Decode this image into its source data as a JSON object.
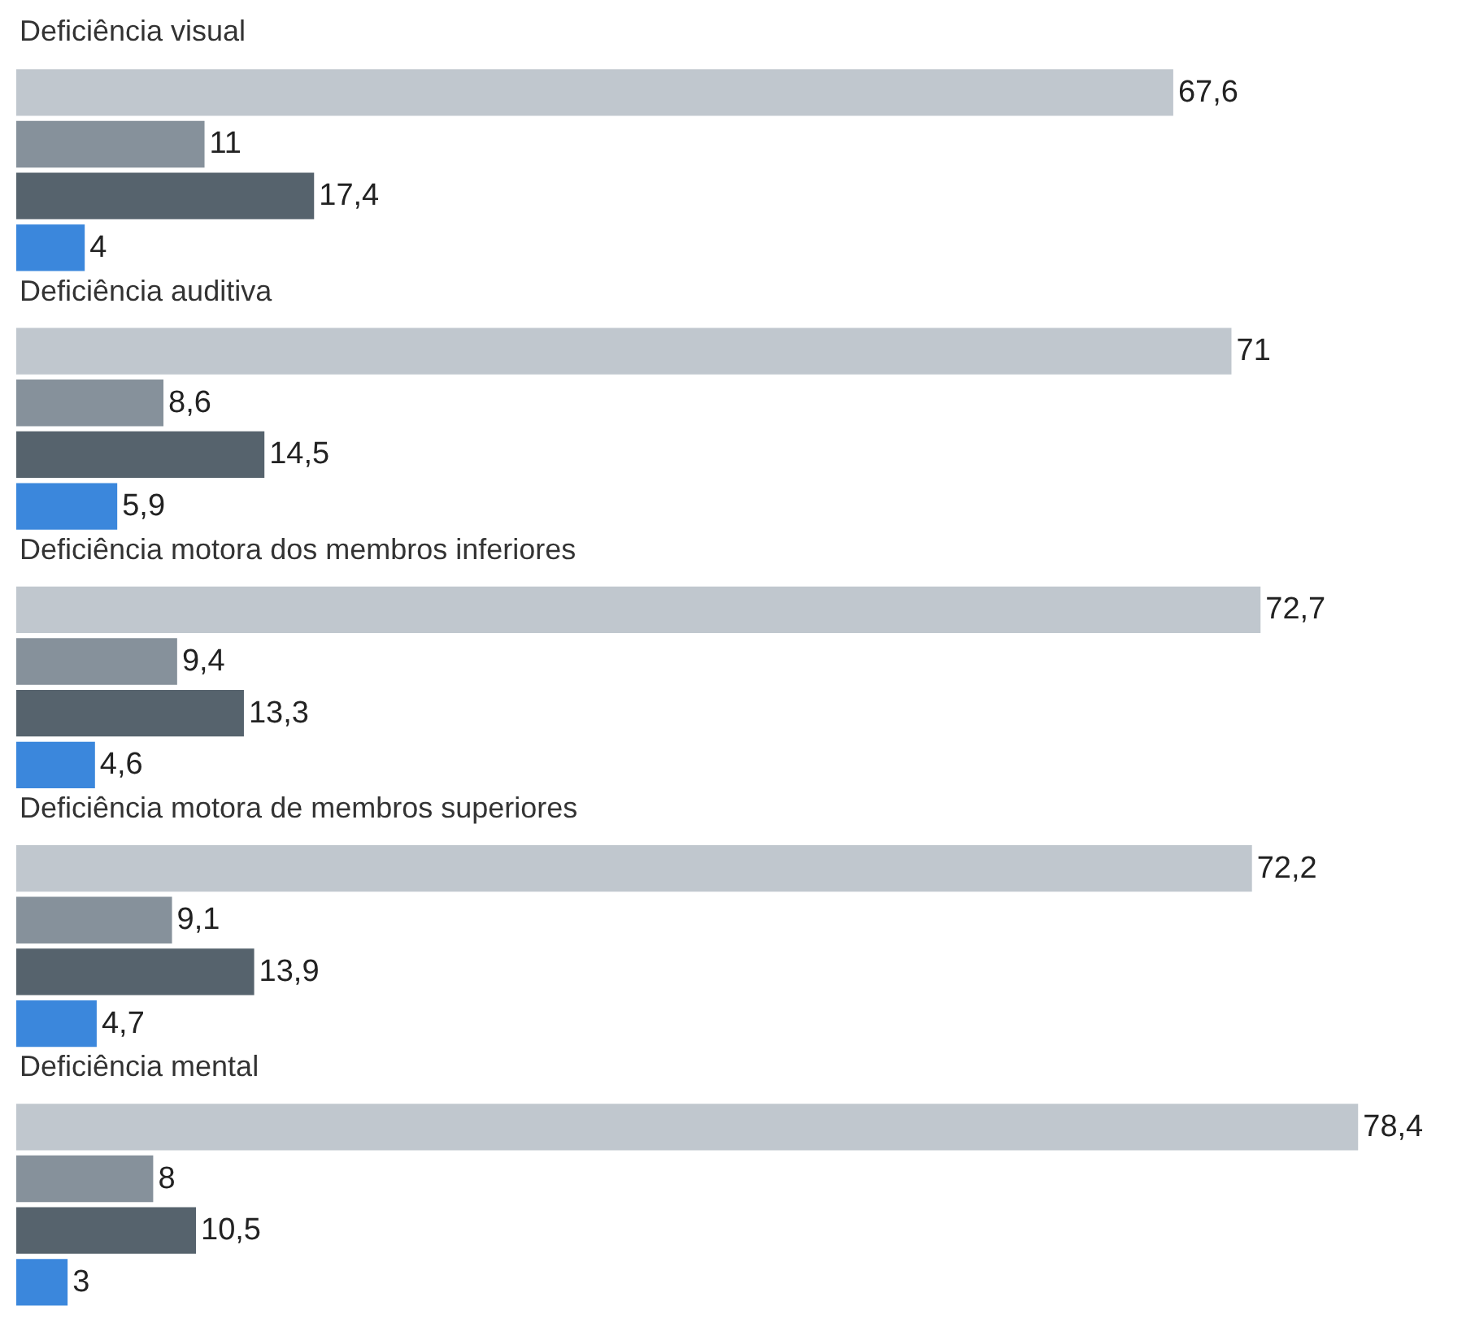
{
  "chart_data": {
    "type": "bar",
    "orientation": "horizontal",
    "categories": [
      "Deficiência visual",
      "Deficiência auditiva",
      "Deficiência motora dos membros inferiores",
      "Deficiência motora de membros superiores",
      "Deficiência mental"
    ],
    "series": [
      {
        "color": "#c0c7ce",
        "values": [
          67.6,
          71,
          72.7,
          72.2,
          78.4
        ],
        "value_labels": [
          "67,6",
          "71",
          "72,7",
          "72,2",
          "78,4"
        ]
      },
      {
        "color": "#86919b",
        "values": [
          11,
          8.6,
          9.4,
          9.1,
          8
        ],
        "value_labels": [
          "11",
          "8,6",
          "9,4",
          "9,1",
          "8"
        ]
      },
      {
        "color": "#56636d",
        "values": [
          17.4,
          14.5,
          13.3,
          13.9,
          10.5
        ],
        "value_labels": [
          "17,4",
          "14,5",
          "13,3",
          "13,9",
          "10,5"
        ]
      },
      {
        "color": "#3b87dc",
        "values": [
          4,
          5.9,
          4.6,
          4.7,
          3
        ],
        "value_labels": [
          "4",
          "5,9",
          "4,6",
          "4,7",
          "3"
        ]
      }
    ]
  }
}
